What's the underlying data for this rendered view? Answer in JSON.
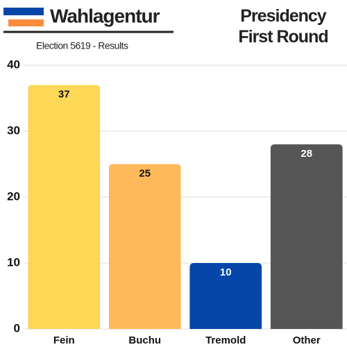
{
  "chart_data": {
    "type": "bar",
    "brand": "Wahlagentur",
    "subtitle": "Election 5619 - Results",
    "title": "Presidency First Round",
    "categories": [
      "Fein",
      "Buchu",
      "Tremold",
      "Other"
    ],
    "values": [
      37,
      25,
      10,
      28
    ],
    "colors": [
      "#fcd856",
      "#fdb95a",
      "#0546a8",
      "#555555"
    ],
    "ylim": [
      0,
      40
    ],
    "yticks": [
      0,
      10,
      20,
      30,
      40
    ],
    "grid": true
  }
}
